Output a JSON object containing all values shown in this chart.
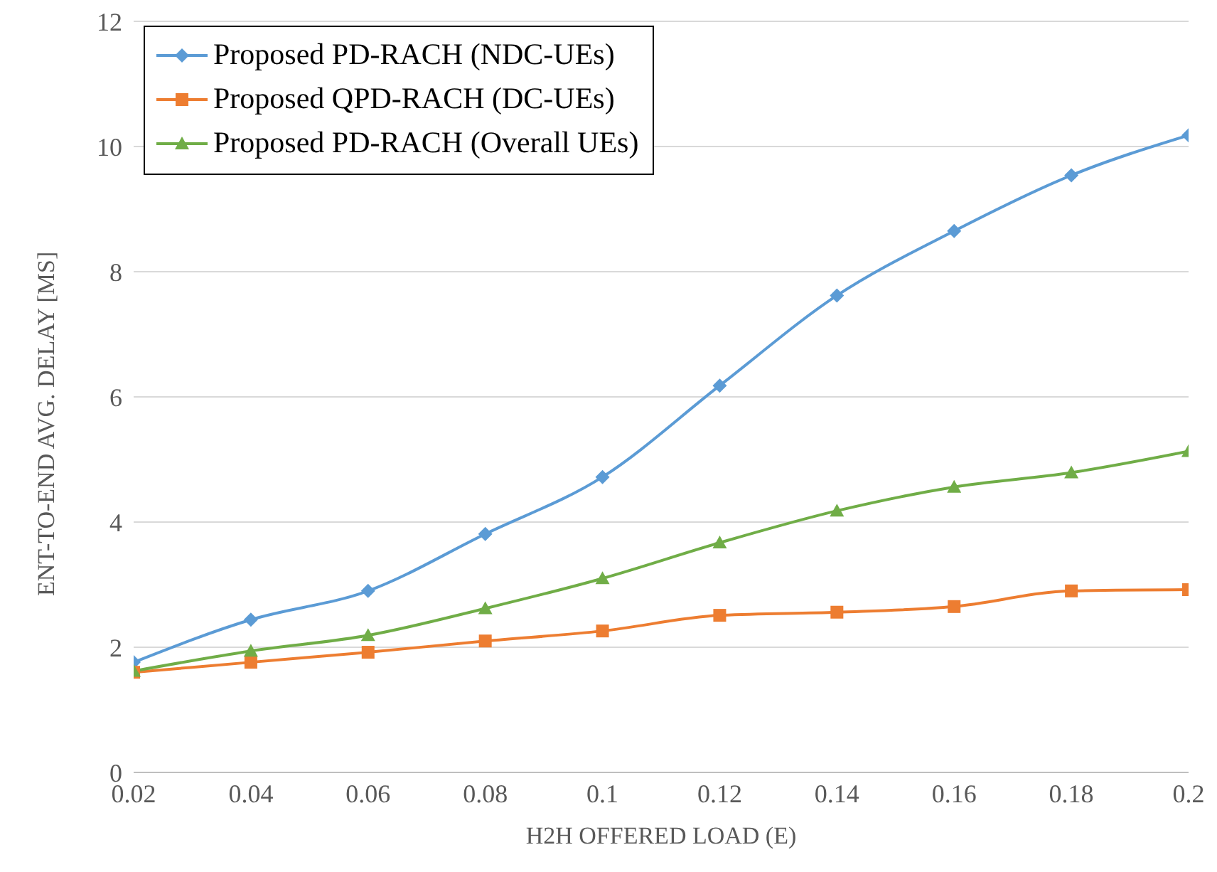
{
  "chart_data": {
    "type": "line",
    "xlabel": "H2H OFFERED LOAD (E)",
    "ylabel": "ENT-TO-END AVG. DELAY [MS]",
    "x": [
      0.02,
      0.04,
      0.06,
      0.08,
      0.1,
      0.12,
      0.14,
      0.16,
      0.18,
      0.2
    ],
    "series": [
      {
        "name": "Proposed PD-RACH (NDC-UEs)",
        "color": "#5b9bd5",
        "marker": "diamond",
        "values": [
          1.76,
          2.44,
          2.9,
          3.81,
          4.72,
          6.18,
          7.62,
          8.65,
          9.54,
          10.18
        ]
      },
      {
        "name": "Proposed QPD-RACH (DC-UEs)",
        "color": "#ed7d31",
        "marker": "square",
        "values": [
          1.6,
          1.76,
          1.92,
          2.1,
          2.26,
          2.51,
          2.56,
          2.65,
          2.9,
          2.92
        ]
      },
      {
        "name": "Proposed PD-RACH (Overall UEs)",
        "color": "#70ad47",
        "marker": "triangle",
        "values": [
          1.62,
          1.94,
          2.19,
          2.62,
          3.1,
          3.67,
          4.18,
          4.56,
          4.79,
          5.13
        ]
      }
    ],
    "xlim": [
      0.02,
      0.2
    ],
    "xticks": [
      0.02,
      0.04,
      0.06,
      0.08,
      0.1,
      0.12,
      0.14,
      0.16,
      0.18,
      0.2
    ],
    "ylim": [
      0,
      12
    ],
    "yticks": [
      0,
      2,
      4,
      6,
      8,
      10,
      12
    ],
    "grid": "y",
    "legend": "top left"
  }
}
